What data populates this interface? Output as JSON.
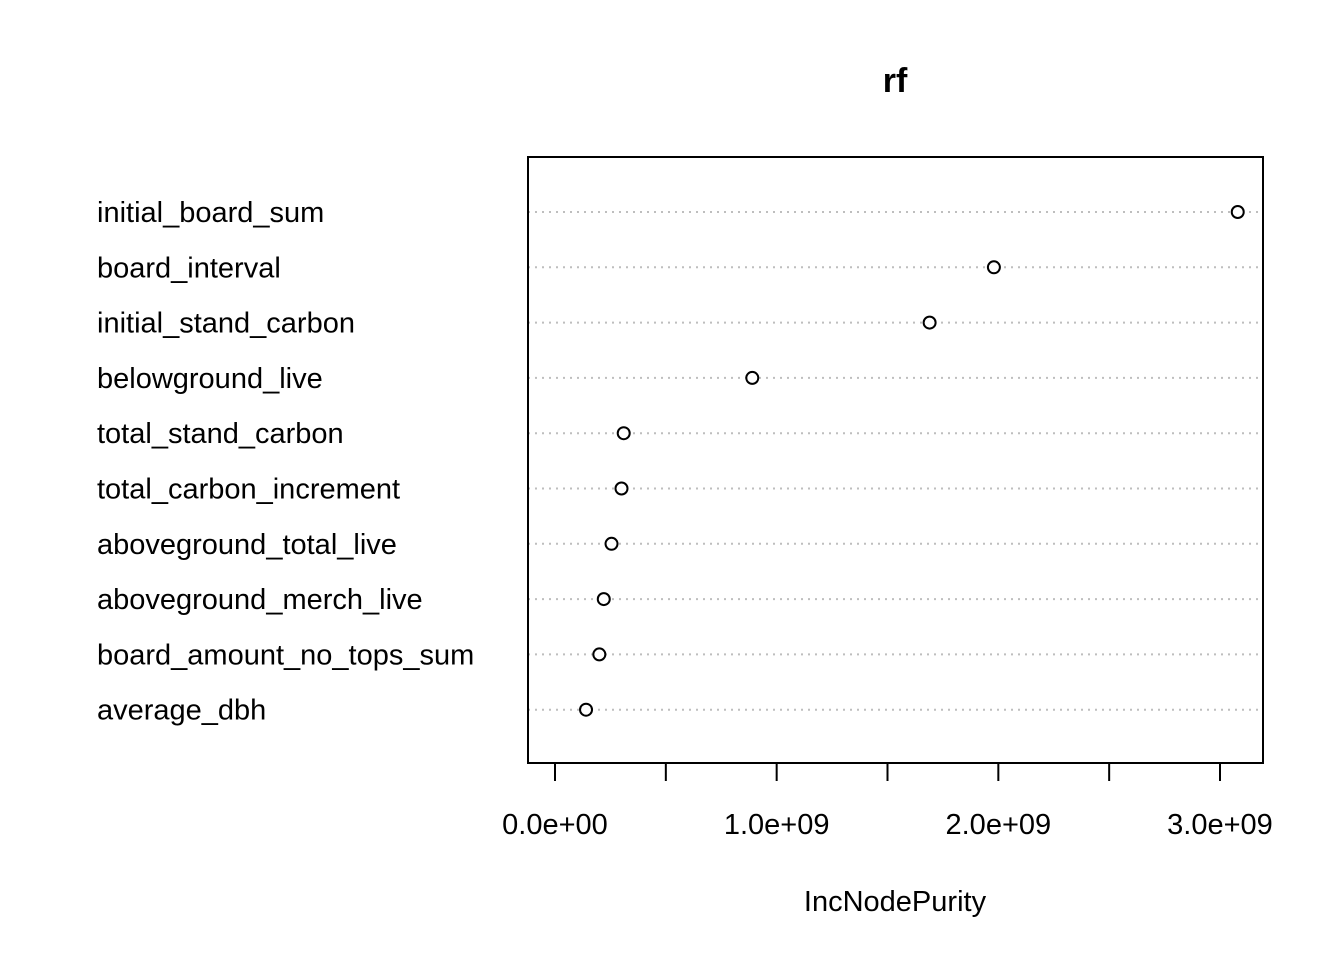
{
  "chart_data": {
    "type": "scatter",
    "title": "rf",
    "xlabel": "IncNodePurity",
    "ylabel": "",
    "xlim": [
      -120000000,
      3200000000
    ],
    "xticks": [
      0,
      500000000,
      1000000000,
      1500000000,
      2000000000,
      2500000000,
      3000000000
    ],
    "xtick_labels": [
      "0.0e+00",
      "",
      "1.0e+09",
      "",
      "2.0e+09",
      "",
      "3.0e+09"
    ],
    "grid": "horizontal dotted lines per variable",
    "legend": "none",
    "categories": [
      "initial_board_sum",
      "board_interval",
      "initial_stand_carbon",
      "belowground_live",
      "total_stand_carbon",
      "total_carbon_increment",
      "aboveground_total_live",
      "aboveground_merch_live",
      "board_amount_no_tops_sum",
      "average_dbh"
    ],
    "values": [
      3080000000,
      1980000000,
      1690000000,
      890000000,
      310000000,
      300000000,
      255000000,
      220000000,
      200000000,
      140000000
    ]
  }
}
